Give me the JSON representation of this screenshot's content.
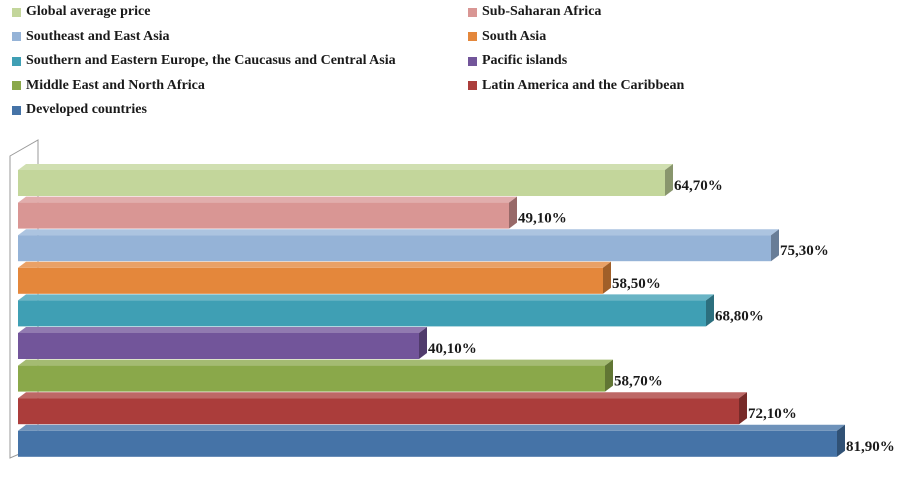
{
  "chart_data": {
    "type": "bar",
    "orientation": "horizontal",
    "three_d": true,
    "categories": [
      "Global average price",
      "Sub-Saharan Africa",
      "Southeast and East Asia",
      "South Asia",
      "Southern and Eastern Europe, the Caucasus and Central Asia",
      "Pacific islands",
      "Middle East and North Africa",
      "Latin America and the Caribbean",
      "Developed countries"
    ],
    "values": [
      64.7,
      49.1,
      75.3,
      58.5,
      68.8,
      40.1,
      58.7,
      72.1,
      81.9
    ],
    "value_labels": [
      "64,70%",
      "49,10%",
      "75,30%",
      "58,50%",
      "68,80%",
      "40,10%",
      "58,70%",
      "72,10%",
      "81,90%"
    ],
    "colors": [
      "#c3d69b",
      "#d99694",
      "#95b3d7",
      "#e4873b",
      "#3f9fb4",
      "#72559a",
      "#8aa84a",
      "#ab3d3b",
      "#4573a7"
    ],
    "xlim": [
      0,
      100
    ],
    "grid": false,
    "legend_position": "top"
  }
}
